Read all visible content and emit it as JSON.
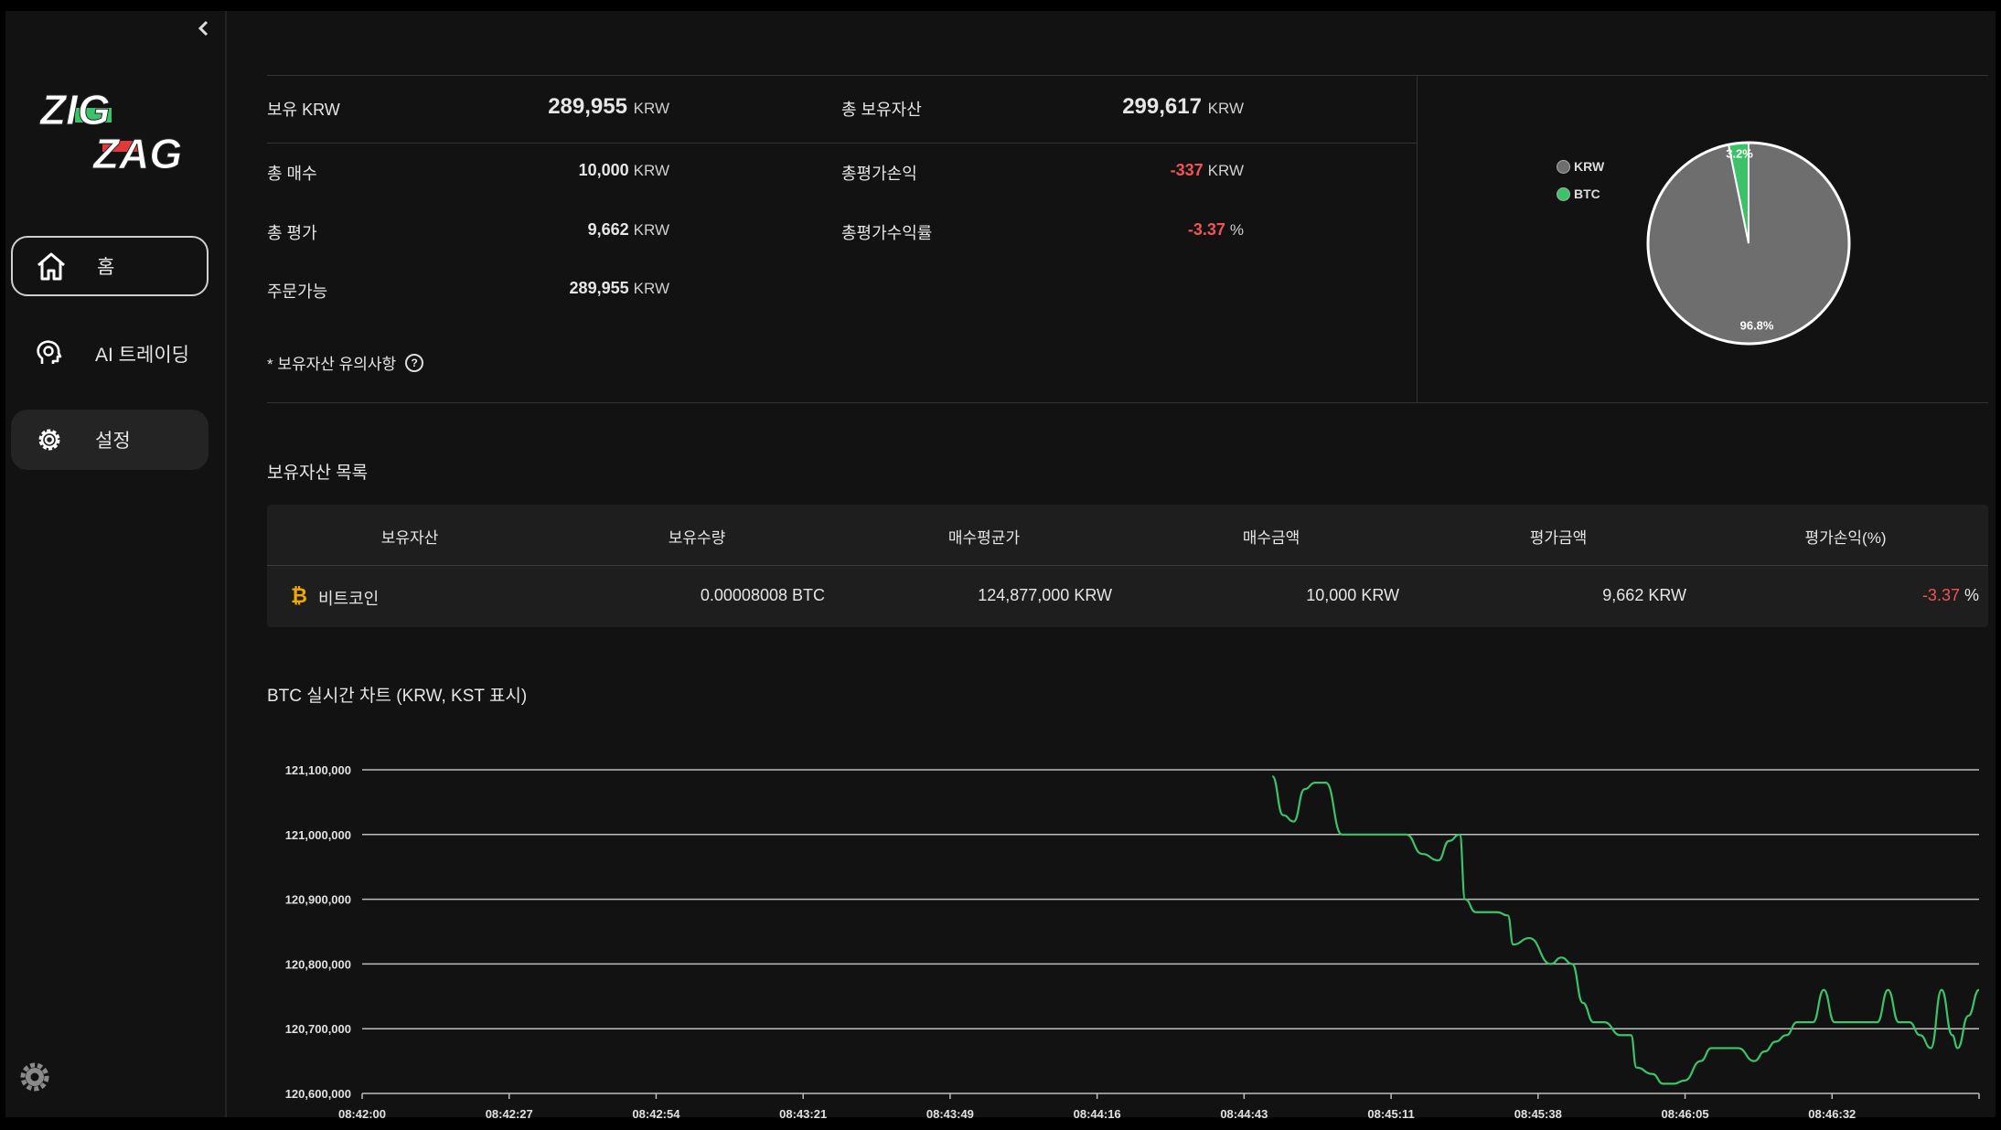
{
  "sidebar": {
    "collapse_icon": "chevron-left-icon",
    "logo": {
      "line1": "ZIG",
      "line2": "ZAG"
    },
    "items": [
      {
        "label": "홈",
        "icon": "home-icon",
        "active": true
      },
      {
        "label": "AI 트레이딩",
        "icon": "ai-brain-icon"
      },
      {
        "label": "설정",
        "icon": "gear-icon"
      }
    ]
  },
  "summary": {
    "held_krw": {
      "label": "보유 KRW",
      "value": "289,955",
      "unit": "KRW"
    },
    "total_assets": {
      "label": "총 보유자산",
      "value": "299,617",
      "unit": "KRW"
    },
    "total_buy": {
      "label": "총 매수",
      "value": "10,000",
      "unit": "KRW"
    },
    "total_pnl": {
      "label": "총평가손익",
      "value": "-337",
      "unit": "KRW"
    },
    "total_eval": {
      "label": "총 평가",
      "value": "9,662",
      "unit": "KRW"
    },
    "total_return": {
      "label": "총평가수익률",
      "value": "-3.37",
      "unit": "%"
    },
    "orderable": {
      "label": "주문가능",
      "value": "289,955",
      "unit": "KRW"
    },
    "notice": "* 보유자산 유의사항"
  },
  "pie": {
    "legend": [
      {
        "label": "KRW",
        "color": "#6e6e6e"
      },
      {
        "label": "BTC",
        "color": "#3cc36a"
      }
    ],
    "slices": [
      {
        "name": "KRW",
        "value": 96.8,
        "label": "96.8%",
        "color": "#6e6e6e"
      },
      {
        "name": "BTC",
        "value": 3.2,
        "label": "3.2%",
        "color": "#3cc36a"
      }
    ]
  },
  "holdings": {
    "title": "보유자산 목록",
    "columns": [
      "보유자산",
      "보유수량",
      "매수평균가",
      "매수금액",
      "평가금액",
      "평가손익(%)"
    ],
    "rows": [
      {
        "asset": "비트코인",
        "icon": "bitcoin-icon",
        "qty": "0.00008008 BTC",
        "avg_price": "124,877,000 KRW",
        "buy_amount": "10,000 KRW",
        "eval_amount": "9,662 KRW",
        "pnl_value": "-3.37",
        "pnl_unit": "%"
      }
    ]
  },
  "chart_title": "BTC 실시간 차트 (KRW, KST 표시)",
  "chart_data": {
    "type": "line",
    "title": "BTC 실시간 차트 (KRW, KST 표시)",
    "xlabel": "",
    "ylabel": "",
    "ylim": [
      120600000,
      121100000
    ],
    "y_ticks": [
      "121,100,000",
      "121,000,000",
      "120,900,000",
      "120,800,000",
      "120,700,000",
      "120,600,000"
    ],
    "x_ticks": [
      "08:42:00",
      "08:42:27",
      "08:42:54",
      "08:43:21",
      "08:43:49",
      "08:44:16",
      "08:44:43",
      "08:45:11",
      "08:45:38",
      "08:46:05",
      "08:46:32"
    ],
    "x_range_seconds": [
      0,
      302
    ],
    "grid": true,
    "line_color": "#3cc36a",
    "series": [
      {
        "x_seconds": [
          170,
          172,
          174,
          176,
          178,
          180,
          183,
          186,
          188,
          190,
          192,
          195,
          198,
          201,
          203,
          205,
          206,
          208,
          210,
          212,
          214,
          215,
          218,
          222,
          224,
          226,
          228,
          230,
          232,
          235,
          237,
          238,
          241,
          243,
          245,
          247,
          250,
          252,
          254,
          257,
          260,
          262,
          264,
          266,
          268,
          270,
          271,
          273,
          275,
          277,
          279,
          281,
          283,
          285,
          287,
          289,
          291,
          293,
          295,
          297,
          298,
          300,
          302
        ],
        "values": [
          121090000,
          121030000,
          121020000,
          121070000,
          121080000,
          121080000,
          121000000,
          121000000,
          121000000,
          121000000,
          121000000,
          121000000,
          120970000,
          120960000,
          120990000,
          121000000,
          120900000,
          120880000,
          120880000,
          120880000,
          120875000,
          120830000,
          120840000,
          120800000,
          120810000,
          120800000,
          120740000,
          120710000,
          120710000,
          120690000,
          120690000,
          120640000,
          120630000,
          120615000,
          120615000,
          120620000,
          120650000,
          120670000,
          120670000,
          120670000,
          120650000,
          120665000,
          120680000,
          120690000,
          120710000,
          120710000,
          120710000,
          120760000,
          120710000,
          120710000,
          120710000,
          120710000,
          120710000,
          120760000,
          120710000,
          120710000,
          120690000,
          120670000,
          120760000,
          120690000,
          120670000,
          120720000,
          120760000
        ]
      }
    ]
  }
}
